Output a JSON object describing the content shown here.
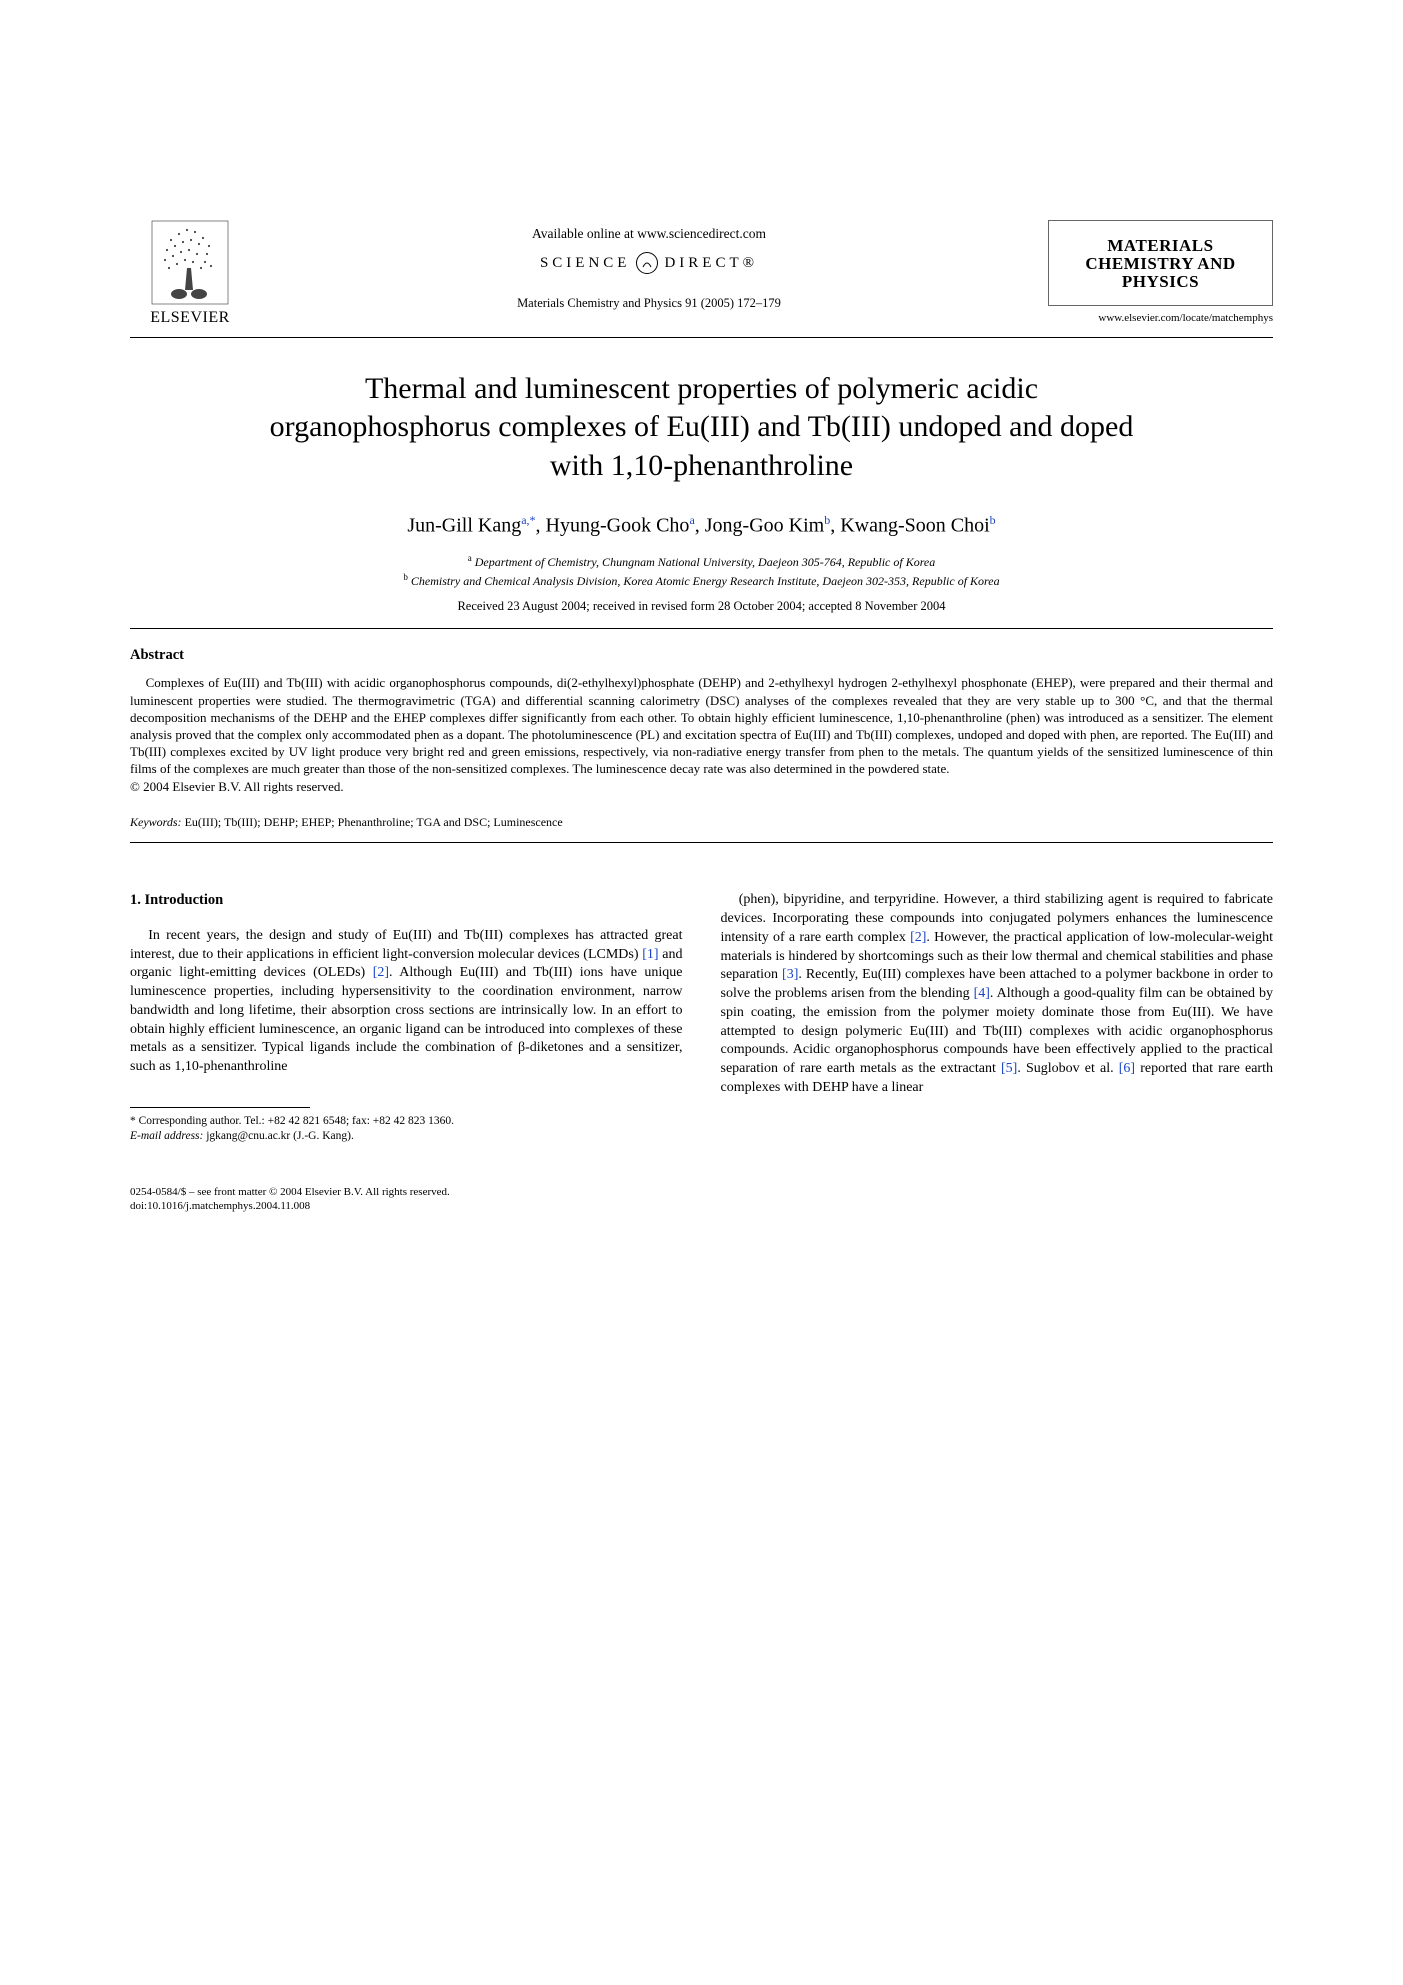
{
  "header": {
    "publisher_name": "ELSEVIER",
    "available_online": "Available online at www.sciencedirect.com",
    "sd_left": "SCIENCE",
    "sd_right": "DIRECT®",
    "citation": "Materials Chemistry and Physics 91 (2005) 172–179",
    "journal_title_l1": "MATERIALS",
    "journal_title_l2": "CHEMISTRY AND",
    "journal_title_l3": "PHYSICS",
    "journal_url": "www.elsevier.com/locate/matchemphys"
  },
  "article": {
    "title": "Thermal and luminescent properties of polymeric acidic organophosphorus complexes of Eu(III) and Tb(III) undoped and doped with 1,10-phenanthroline",
    "authors_html": "Jun-Gill Kang<sup>a,*</sup>, Hyung-Gook Cho<sup>a</sup>, Jong-Goo Kim<sup>b</sup>, Kwang-Soon Choi<sup>b</sup>",
    "aff_a": "Department of Chemistry, Chungnam National University, Daejeon 305-764, Republic of Korea",
    "aff_b": "Chemistry and Chemical Analysis Division, Korea Atomic Energy Research Institute, Daejeon 302-353, Republic of Korea",
    "history": "Received 23 August 2004; received in revised form 28 October 2004; accepted 8 November 2004"
  },
  "abstract": {
    "heading": "Abstract",
    "body": "Complexes of Eu(III) and Tb(III) with acidic organophosphorus compounds, di(2-ethylhexyl)phosphate (DEHP) and 2-ethylhexyl hydrogen 2-ethylhexyl phosphonate (EHEP), were prepared and their thermal and luminescent properties were studied. The thermogravimetric (TGA) and differential scanning calorimetry (DSC) analyses of the complexes revealed that they are very stable up to 300 °C, and that the thermal decomposition mechanisms of the DEHP and the EHEP complexes differ significantly from each other. To obtain highly efficient luminescence, 1,10-phenanthroline (phen) was introduced as a sensitizer. The element analysis proved that the complex only accommodated phen as a dopant. The photoluminescence (PL) and excitation spectra of Eu(III) and Tb(III) complexes, undoped and doped with phen, are reported. The Eu(III) and Tb(III) complexes excited by UV light produce very bright red and green emissions, respectively, via non-radiative energy transfer from phen to the metals. The quantum yields of the sensitized luminescence of thin films of the complexes are much greater than those of the non-sensitized complexes. The luminescence decay rate was also determined in the powdered state.",
    "copyright": "© 2004 Elsevier B.V. All rights reserved."
  },
  "keywords": {
    "label": "Keywords:",
    "text": "Eu(III); Tb(III); DEHP; EHEP; Phenanthroline; TGA and DSC; Luminescence"
  },
  "section1": {
    "title": "1. Introduction",
    "col1_html": "In recent years, the design and study of Eu(III) and Tb(III) complexes has attracted great interest, due to their applications in efficient light-conversion molecular devices (LCMDs) <span class=\"cite\">[1]</span> and organic light-emitting devices (OLEDs) <span class=\"cite\">[2]</span>. Although Eu(III) and Tb(III) ions have unique luminescence properties, including hypersensitivity to the coordination environment, narrow bandwidth and long lifetime, their absorption cross sections are intrinsically low. In an effort to obtain highly efficient luminescence, an organic ligand can be introduced into complexes of these metals as a sensitizer. Typical ligands include the combination of β-diketones and a sensitizer, such as 1,10-phenanthroline",
    "col2_html": "(phen), bipyridine, and terpyridine. However, a third stabilizing agent is required to fabricate devices. Incorporating these compounds into conjugated polymers enhances the luminescence intensity of a rare earth complex <span class=\"cite\">[2]</span>. However, the practical application of low-molecular-weight materials is hindered by shortcomings such as their low thermal and chemical stabilities and phase separation <span class=\"cite\">[3]</span>. Recently, Eu(III) complexes have been attached to a polymer backbone in order to solve the problems arisen from the blending <span class=\"cite\">[4]</span>. Although a good-quality film can be obtained by spin coating, the emission from the polymer moiety dominate those from Eu(III). We have attempted to design polymeric Eu(III) and Tb(III) complexes with acidic organophosphorus compounds. Acidic organophosphorus compounds have been effectively applied to the practical separation of rare earth metals as the extractant <span class=\"cite\">[5]</span>. Suglobov et al. <span class=\"cite\">[6]</span> reported that rare earth complexes with DEHP have a linear"
  },
  "footnotes": {
    "corr": "* Corresponding author. Tel.: +82 42 821 6548; fax: +82 42 823 1360.",
    "email_label": "E-mail address:",
    "email": "jgkang@cnu.ac.kr (J.-G. Kang)."
  },
  "bottom": {
    "line1": "0254-0584/$ – see front matter © 2004 Elsevier B.V. All rights reserved.",
    "line2": "doi:10.1016/j.matchemphys.2004.11.008"
  },
  "colors": {
    "link": "#1944c4",
    "text": "#000000",
    "bg": "#ffffff"
  }
}
